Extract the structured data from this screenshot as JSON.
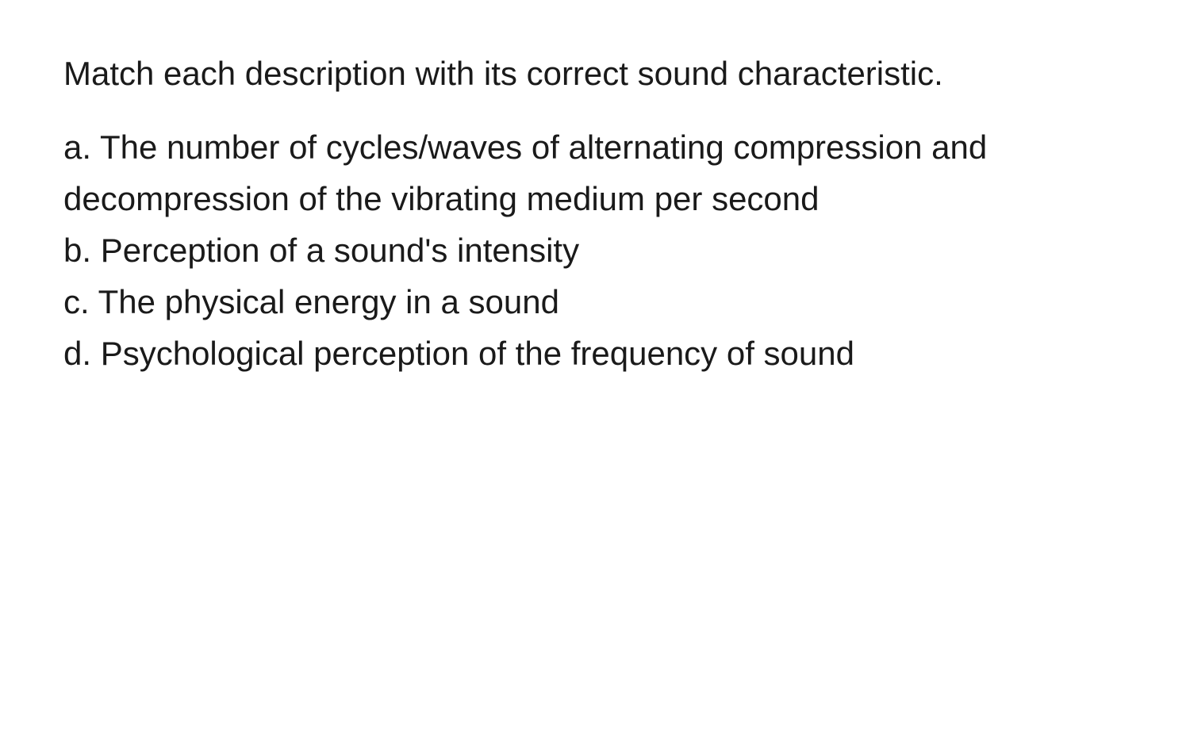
{
  "document": {
    "background_color": "#ffffff",
    "text_color": "#1a1a1a",
    "font_size_pt": 32,
    "font_weight": 400,
    "line_height": 1.55,
    "font_family": "system-ui sans-serif",
    "intro": "Match each description with its correct sound characteristic.",
    "items": [
      {
        "label": "a.",
        "text": "The number of cycles/waves of alternating compression and decompression of the vibrating medium per second"
      },
      {
        "label": "b.",
        "text": "Perception of a sound's intensity"
      },
      {
        "label": "c.",
        "text": "The physical energy in a sound"
      },
      {
        "label": "d.",
        "text": "Psychological perception of the frequency of sound"
      }
    ]
  }
}
